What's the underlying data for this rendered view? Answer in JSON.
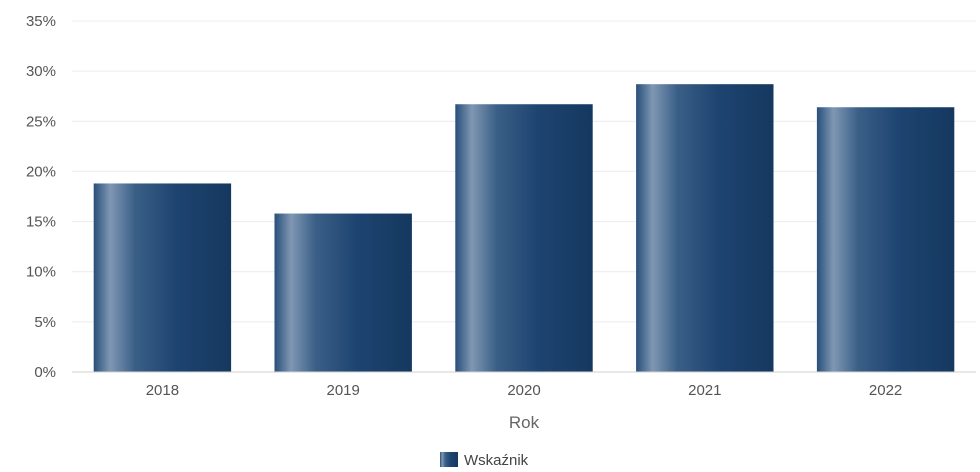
{
  "chart_data": {
    "type": "bar",
    "categories": [
      "2018",
      "2019",
      "2020",
      "2021",
      "2022"
    ],
    "series": [
      {
        "name": "Wskaźnik",
        "values": [
          18.8,
          15.8,
          26.7,
          28.7,
          26.4
        ]
      }
    ],
    "xlabel": "Rok",
    "ylabel": "",
    "ylim": [
      0,
      35
    ],
    "y_ticks": [
      "0%",
      "5%",
      "10%",
      "15%",
      "20%",
      "25%",
      "30%",
      "35%"
    ],
    "y_unit": "%",
    "grid": true,
    "legend_position": "bottom",
    "colors": {
      "bar_dark": "#173f6b",
      "bar_light": "#7f97b3",
      "grid": "#ececec",
      "axis": "#d0d0d0"
    }
  }
}
